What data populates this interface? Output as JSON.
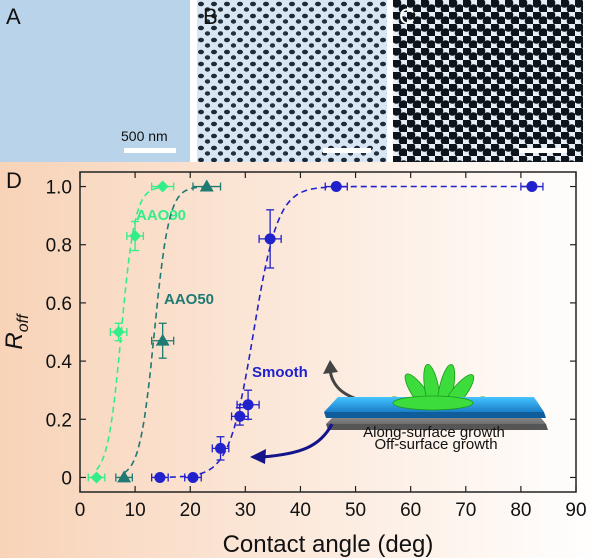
{
  "panels": {
    "a": {
      "letter": "A",
      "scale_label": "500 nm",
      "bg_color": "#b9d3ea"
    },
    "b": {
      "letter": "B"
    },
    "c": {
      "letter": "C"
    },
    "d": {
      "letter": "D"
    }
  },
  "insets": {
    "off_surface": "Off-surface growth",
    "along_surface": "Along-surface growth"
  },
  "chart_data": {
    "type": "scatter",
    "xlabel": "Contact angle (deg)",
    "ylabel_main": "R",
    "ylabel_sub": "off",
    "xlim": [
      0,
      90
    ],
    "ylim": [
      -0.05,
      1.05
    ],
    "x_ticks": [
      "0",
      "10",
      "20",
      "30",
      "40",
      "50",
      "60",
      "70",
      "80",
      "90"
    ],
    "y_ticks": [
      "0",
      "0.2",
      "0.4",
      "0.6",
      "0.8",
      "1.0"
    ],
    "series": [
      {
        "name": "AAO90",
        "color": "#33ee88",
        "marker": "diamond",
        "points": [
          {
            "x": 3,
            "y": 0,
            "xerr": 1.5,
            "yerr": 0
          },
          {
            "x": 7,
            "y": 0.5,
            "xerr": 1.5,
            "yerr": 0.03
          },
          {
            "x": 10,
            "y": 0.83,
            "xerr": 1.5,
            "yerr": 0.05
          },
          {
            "x": 15,
            "y": 1.0,
            "xerr": 2,
            "yerr": 0
          }
        ],
        "fit": {
          "x0": 7.5,
          "k": 0.8
        }
      },
      {
        "name": "AAO50",
        "color": "#1e7a72",
        "marker": "triangle",
        "points": [
          {
            "x": 8,
            "y": 0,
            "xerr": 1.5,
            "yerr": 0
          },
          {
            "x": 15,
            "y": 0.47,
            "xerr": 2,
            "yerr": 0.06
          },
          {
            "x": 23,
            "y": 1.0,
            "xerr": 2.5,
            "yerr": 0
          }
        ],
        "fit": {
          "x0": 13.5,
          "k": 0.75
        }
      },
      {
        "name": "Smooth",
        "color": "#2222cc",
        "marker": "circle",
        "points": [
          {
            "x": 14.5,
            "y": 0,
            "xerr": 1.5,
            "yerr": 0
          },
          {
            "x": 20.5,
            "y": 0,
            "xerr": 1.5,
            "yerr": 0
          },
          {
            "x": 25.5,
            "y": 0.1,
            "xerr": 1.5,
            "yerr": 0.04
          },
          {
            "x": 29,
            "y": 0.21,
            "xerr": 1.5,
            "yerr": 0.03
          },
          {
            "x": 30.5,
            "y": 0.25,
            "xerr": 2,
            "yerr": 0.05
          },
          {
            "x": 34.5,
            "y": 0.82,
            "xerr": 2,
            "yerr": 0.1
          },
          {
            "x": 46.5,
            "y": 1.0,
            "xerr": 2,
            "yerr": 0
          },
          {
            "x": 82,
            "y": 1.0,
            "xerr": 2,
            "yerr": 0
          }
        ],
        "fit": {
          "x0": 31.5,
          "k": 0.45
        }
      }
    ]
  }
}
